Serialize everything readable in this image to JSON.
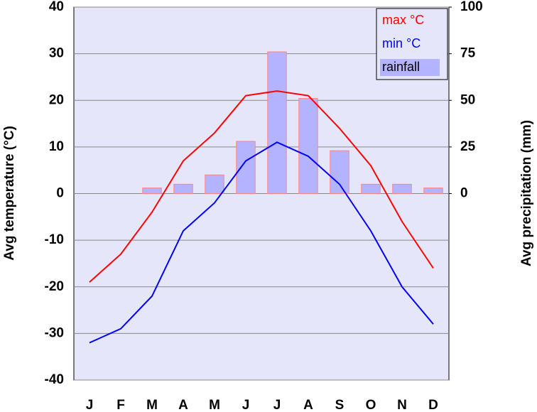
{
  "chart_data": {
    "type": "climate",
    "categories": [
      "J",
      "F",
      "M",
      "A",
      "M",
      "J",
      "J",
      "A",
      "S",
      "O",
      "N",
      "D"
    ],
    "series": [
      {
        "name": "max °C",
        "color": "#ff0000",
        "kind": "line",
        "values": [
          -19,
          -13,
          -4,
          7,
          13,
          21,
          22,
          21,
          14,
          6,
          -6,
          -16
        ]
      },
      {
        "name": "min °C",
        "color": "#0000ff",
        "kind": "line",
        "values": [
          -32,
          -29,
          -22,
          -8,
          -2,
          7,
          11,
          8,
          2,
          -8,
          -20,
          -28
        ]
      },
      {
        "name": "rainfall",
        "color": "#b3b3ff",
        "kind": "bar",
        "axis": "y2",
        "values": [
          0,
          0,
          3,
          5,
          10,
          28,
          76,
          51,
          23,
          5,
          5,
          3
        ]
      }
    ],
    "ylabel": "Avg temperature (°C)",
    "y2label": "Avg precipitation (mm)",
    "ylim": [
      -40,
      40
    ],
    "yticks": [
      -40,
      -30,
      -20,
      -10,
      0,
      10,
      20,
      30,
      40
    ],
    "y2lim": [
      -100,
      100
    ],
    "y2ticks": [
      0,
      25,
      50,
      75,
      100
    ],
    "grid": true,
    "legend": "top-right"
  }
}
